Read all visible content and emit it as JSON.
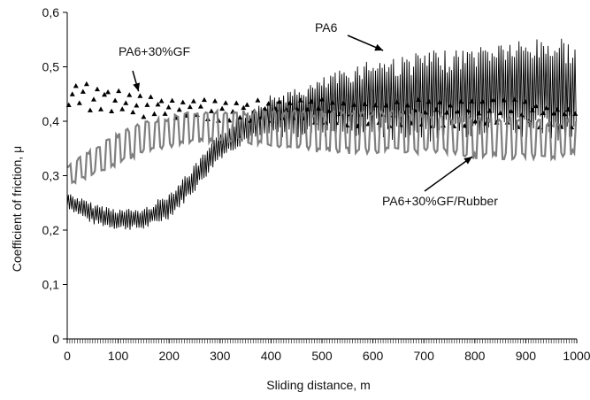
{
  "chart_data": {
    "type": "line",
    "title": "",
    "xlabel": "Sliding distance, m",
    "ylabel": "Coefficient of friction, μ",
    "xlim": [
      0,
      1000
    ],
    "ylim": [
      0,
      0.6
    ],
    "grid": false,
    "legend": "none",
    "x_ticks": [
      "0",
      "100",
      "200",
      "300",
      "400",
      "500",
      "600",
      "700",
      "800",
      "900",
      "1000"
    ],
    "y_ticks": [
      "0",
      "0,1",
      "0,2",
      "0,3",
      "0,4",
      "0,5",
      "0,6"
    ],
    "series": [
      {
        "name": "PA6",
        "style": "thin-black-line",
        "color": "#000000",
        "x": [
          0,
          50,
          100,
          150,
          200,
          250,
          300,
          350,
          400,
          450,
          500,
          550,
          600,
          650,
          700,
          750,
          800,
          850,
          900,
          950,
          1000
        ],
        "low": [
          0.24,
          0.21,
          0.2,
          0.2,
          0.22,
          0.27,
          0.33,
          0.36,
          0.37,
          0.37,
          0.37,
          0.37,
          0.37,
          0.36,
          0.36,
          0.37,
          0.37,
          0.38,
          0.37,
          0.36,
          0.36
        ],
        "high": [
          0.27,
          0.25,
          0.24,
          0.24,
          0.27,
          0.32,
          0.38,
          0.42,
          0.45,
          0.46,
          0.48,
          0.5,
          0.52,
          0.52,
          0.53,
          0.53,
          0.54,
          0.55,
          0.55,
          0.56,
          0.55
        ]
      },
      {
        "name": "PA6+30%GF",
        "style": "triangle-markers",
        "color": "#000000",
        "x": [
          0,
          50,
          100,
          150,
          200,
          250,
          300,
          350,
          400,
          450,
          500,
          550,
          600,
          650,
          700,
          750,
          800,
          850,
          900,
          950,
          1000
        ],
        "low": [
          0.42,
          0.41,
          0.41,
          0.4,
          0.4,
          0.4,
          0.39,
          0.39,
          0.39,
          0.39,
          0.39,
          0.38,
          0.38,
          0.38,
          0.38,
          0.38,
          0.38,
          0.38,
          0.38,
          0.38,
          0.38
        ],
        "high": [
          0.48,
          0.47,
          0.46,
          0.45,
          0.44,
          0.44,
          0.44,
          0.44,
          0.44,
          0.44,
          0.44,
          0.44,
          0.44,
          0.44,
          0.44,
          0.44,
          0.44,
          0.44,
          0.44,
          0.43,
          0.43
        ]
      },
      {
        "name": "PA6+30%GF/Rubber",
        "style": "thick-gray-line",
        "color": "#7f7f7f",
        "x": [
          0,
          50,
          100,
          150,
          200,
          250,
          300,
          350,
          400,
          450,
          500,
          550,
          600,
          650,
          700,
          750,
          800,
          850,
          900,
          950,
          1000
        ],
        "low": [
          0.28,
          0.3,
          0.32,
          0.34,
          0.35,
          0.36,
          0.36,
          0.36,
          0.35,
          0.35,
          0.34,
          0.34,
          0.34,
          0.34,
          0.34,
          0.34,
          0.33,
          0.33,
          0.33,
          0.33,
          0.34
        ],
        "high": [
          0.32,
          0.35,
          0.38,
          0.4,
          0.41,
          0.42,
          0.42,
          0.42,
          0.42,
          0.42,
          0.42,
          0.42,
          0.42,
          0.42,
          0.42,
          0.41,
          0.41,
          0.41,
          0.41,
          0.4,
          0.41
        ]
      }
    ],
    "annotations": [
      {
        "text": "PA6",
        "arrow_to": [
          620,
          0.53
        ]
      },
      {
        "text": "PA6+30%GF",
        "arrow_to": [
          140,
          0.455
        ]
      },
      {
        "text": "PA6+30%GF/Rubber",
        "arrow_to": [
          795,
          0.335
        ]
      }
    ]
  }
}
